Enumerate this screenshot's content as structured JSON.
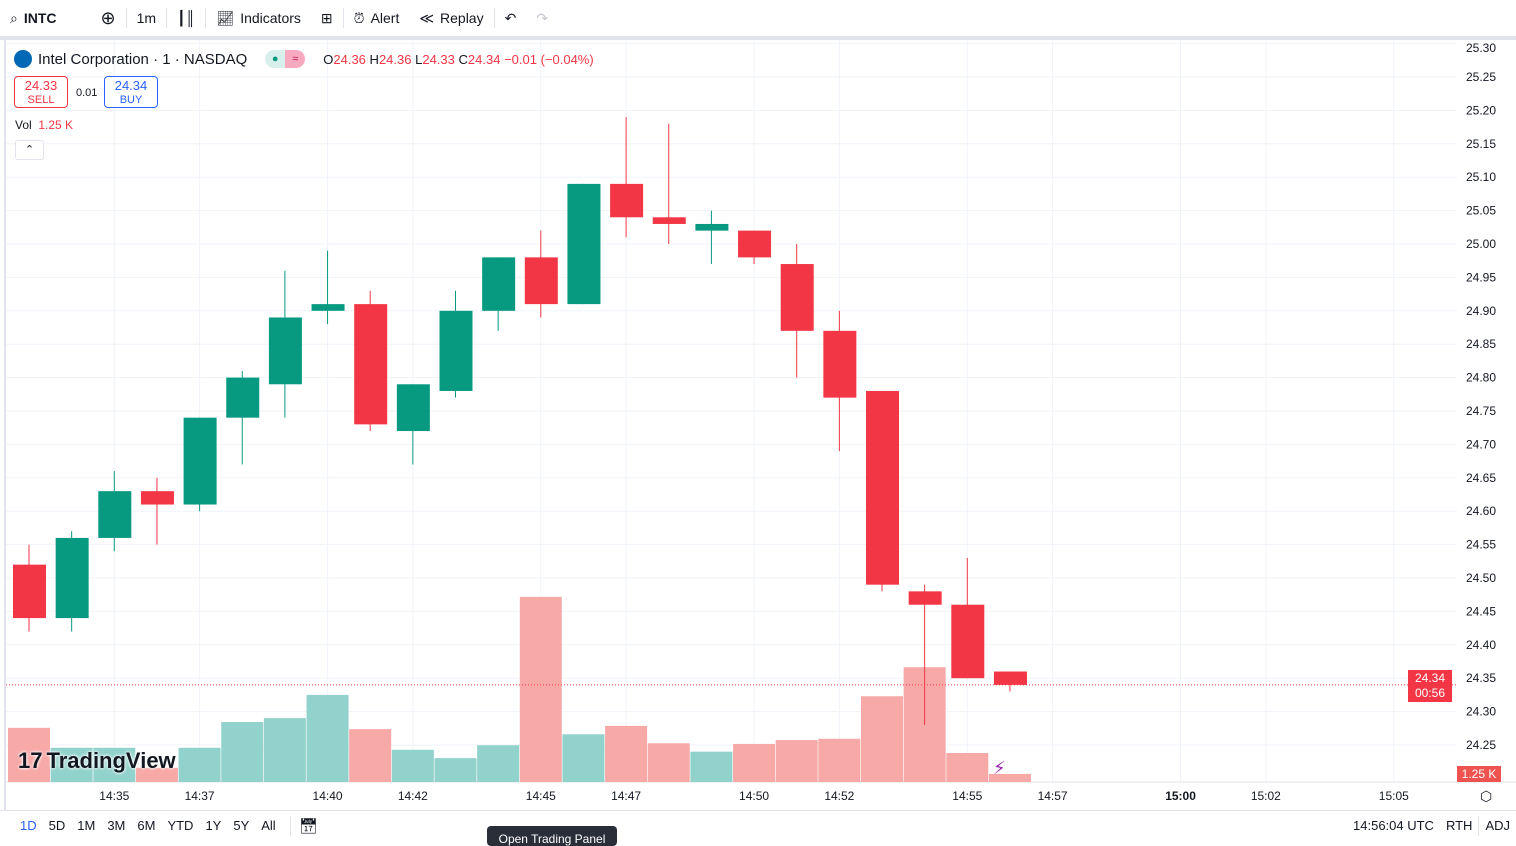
{
  "toolbar": {
    "symbol": "INTC",
    "interval": "1m",
    "indicators": "Indicators",
    "alert": "Alert",
    "replay": "Replay"
  },
  "legend": {
    "title": "Intel Corporation · 1 · NASDAQ",
    "o_label": "O",
    "o": "24.36",
    "h_label": "H",
    "h": "24.36",
    "l_label": "L",
    "l": "24.33",
    "c_label": "C",
    "c": "24.34",
    "change": "−0.01 (−0.04%)"
  },
  "trade": {
    "sell_price": "24.33",
    "sell_label": "SELL",
    "spread": "0.01",
    "buy_price": "24.34",
    "buy_label": "BUY"
  },
  "volume": {
    "label": "Vol",
    "value": "1.25 K"
  },
  "price_axis": {
    "last_price": "24.34",
    "countdown": "00:56",
    "volume_label": "1.25 K"
  },
  "brand": "TradingView",
  "bottom": {
    "ranges": [
      "1D",
      "5D",
      "1M",
      "3M",
      "6M",
      "YTD",
      "1Y",
      "5Y",
      "All"
    ],
    "active_range": "1D",
    "clock": "14:56:04 UTC",
    "rth": "RTH",
    "adj": "ADJ",
    "tooltip": "Open Trading Panel"
  },
  "colors": {
    "up": "#089981",
    "down": "#f23645",
    "up_vol": "#92d2cc",
    "down_vol": "#f7a9a7",
    "accent": "#2962ff"
  },
  "chart_data": {
    "type": "candlestick",
    "symbol": "INTC",
    "interval": "1m",
    "time": [
      "14:33",
      "14:34",
      "14:35",
      "14:36",
      "14:37",
      "14:38",
      "14:39",
      "14:40",
      "14:41",
      "14:42",
      "14:43",
      "14:44",
      "14:45",
      "14:46",
      "14:47",
      "14:48",
      "14:49",
      "14:50",
      "14:51",
      "14:52",
      "14:53",
      "14:54",
      "14:55",
      "14:56"
    ],
    "open": [
      24.52,
      24.44,
      24.56,
      24.63,
      24.61,
      24.74,
      24.79,
      24.9,
      24.91,
      24.72,
      24.78,
      24.9,
      24.98,
      24.91,
      25.09,
      25.04,
      25.02,
      25.02,
      24.97,
      24.87,
      24.78,
      24.48,
      24.46,
      24.36
    ],
    "high": [
      24.55,
      24.57,
      24.66,
      24.65,
      24.74,
      24.81,
      24.96,
      24.99,
      24.93,
      24.79,
      24.93,
      24.98,
      25.02,
      25.09,
      25.19,
      25.18,
      25.05,
      25.02,
      25.0,
      24.9,
      24.78,
      24.49,
      24.53,
      24.36
    ],
    "low": [
      24.42,
      24.42,
      24.54,
      24.55,
      24.6,
      24.67,
      24.74,
      24.88,
      24.72,
      24.67,
      24.77,
      24.87,
      24.89,
      24.91,
      25.01,
      25.0,
      24.97,
      24.97,
      24.8,
      24.69,
      24.48,
      24.28,
      24.35,
      24.33
    ],
    "close": [
      24.44,
      24.56,
      24.63,
      24.61,
      24.74,
      24.8,
      24.89,
      24.91,
      24.73,
      24.79,
      24.9,
      24.98,
      24.91,
      25.09,
      25.04,
      25.03,
      25.03,
      24.98,
      24.87,
      24.77,
      24.49,
      24.46,
      24.35,
      24.34
    ],
    "volume_k": [
      8.4,
      5.3,
      5.3,
      2.2,
      5.3,
      9.3,
      9.9,
      13.5,
      8.2,
      5.0,
      3.7,
      5.7,
      28.7,
      7.4,
      8.7,
      6.0,
      4.7,
      5.9,
      6.5,
      6.7,
      13.3,
      17.8,
      4.5,
      1.25
    ],
    "y_ticks": [
      "25.30",
      "25.25",
      "25.20",
      "25.15",
      "25.10",
      "25.05",
      "25.00",
      "24.95",
      "24.90",
      "24.85",
      "24.80",
      "24.75",
      "24.70",
      "24.65",
      "24.60",
      "24.55",
      "24.50",
      "24.45",
      "24.40",
      "24.35",
      "24.30",
      "24.25"
    ],
    "x_ticks": [
      {
        "label": "14:35",
        "min": 2
      },
      {
        "label": "14:37",
        "min": 4
      },
      {
        "label": "14:40",
        "min": 7
      },
      {
        "label": "14:42",
        "min": 9
      },
      {
        "label": "14:45",
        "min": 12
      },
      {
        "label": "14:47",
        "min": 14
      },
      {
        "label": "14:50",
        "min": 17
      },
      {
        "label": "14:52",
        "min": 19
      },
      {
        "label": "14:55",
        "min": 22
      },
      {
        "label": "14:57",
        "min": 24
      },
      {
        "label": "15:00",
        "min": 27
      },
      {
        "label": "15:02",
        "min": 29
      },
      {
        "label": "15:05",
        "min": 32
      }
    ],
    "ylim": [
      24.21,
      25.3
    ],
    "grid": true
  }
}
